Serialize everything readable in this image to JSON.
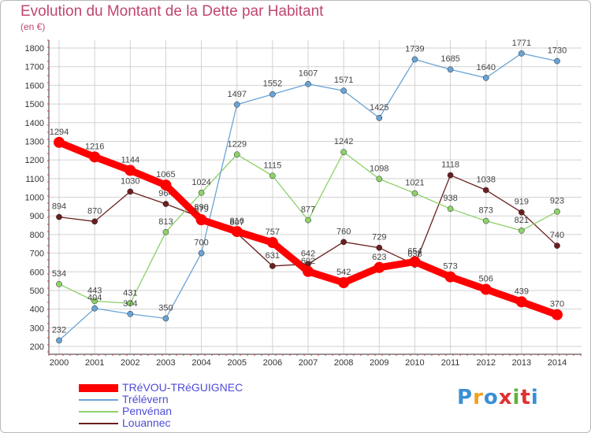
{
  "chart_data": {
    "type": "line",
    "title": "Evolution du Montant de la Dette par Habitant",
    "ylabel": "(en €)",
    "x": [
      2000,
      2001,
      2002,
      2003,
      2004,
      2005,
      2006,
      2007,
      2008,
      2009,
      2010,
      2011,
      2012,
      2013,
      2014
    ],
    "ylim": [
      200,
      1800
    ],
    "yticks": [
      200,
      300,
      400,
      500,
      600,
      700,
      800,
      900,
      1000,
      1100,
      1200,
      1300,
      1400,
      1500,
      1600,
      1700,
      1800
    ],
    "grid": true,
    "legend_position": "bottom-left",
    "series": [
      {
        "name": "Louannec",
        "color": "#6b1f1f",
        "values": [
          894,
          870,
          1030,
          964,
          890,
          807,
          631,
          642,
          760,
          729,
          638,
          1118,
          1038,
          919,
          740
        ]
      },
      {
        "name": "Penvénan",
        "color": "#8ed16a",
        "values": [
          534,
          443,
          431,
          813,
          1024,
          1229,
          1115,
          877,
          1242,
          1098,
          1021,
          938,
          873,
          821,
          923
        ]
      },
      {
        "name": "Trélévern",
        "color": "#6aa4d6",
        "values": [
          232,
          404,
          374,
          350,
          700,
          1497,
          1552,
          1607,
          1571,
          1425,
          1739,
          1685,
          1640,
          1771,
          1730
        ]
      },
      {
        "name": "TRéVOU-TRéGUIGNEC",
        "color": "#ff0000",
        "highlight": true,
        "values": [
          1294,
          1216,
          1144,
          1065,
          879,
          816,
          757,
          602,
          542,
          623,
          654,
          573,
          506,
          439,
          370
        ]
      }
    ]
  },
  "legend": [
    {
      "label": "TRéVOU-TRéGUIGNEC",
      "color": "#ff0000"
    },
    {
      "label": "Trélévern",
      "color": "#6aa4d6"
    },
    {
      "label": "Penvénan",
      "color": "#8ed16a"
    },
    {
      "label": "Louannec",
      "color": "#6b1f1f"
    }
  ],
  "logo": {
    "text": "Proxiti",
    "letter_colors": [
      "#3a8fd6",
      "#f0a020",
      "#3a8fd6",
      "#e03030",
      "#60b040",
      "#e03030",
      "#3a8fd6"
    ]
  }
}
